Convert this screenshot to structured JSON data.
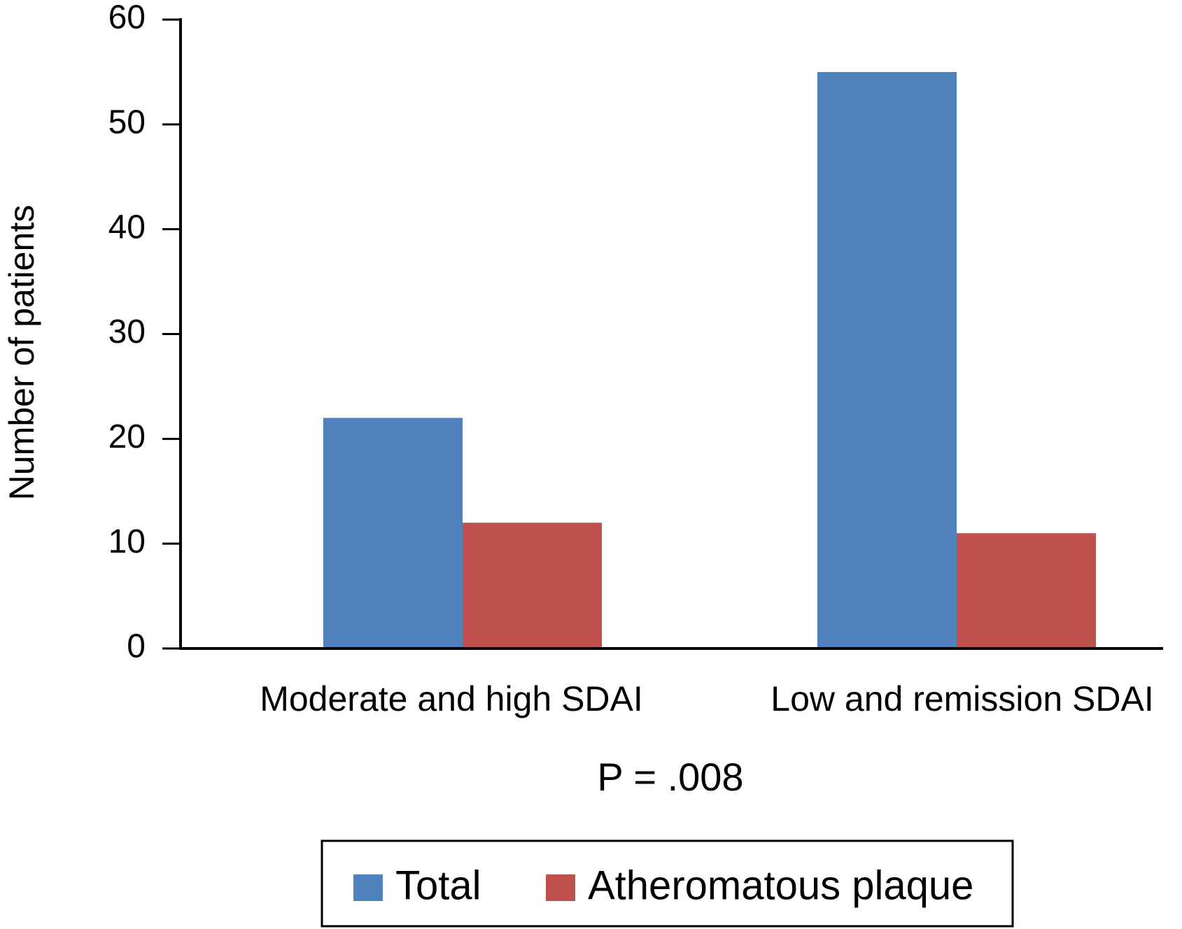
{
  "chart_data": {
    "type": "bar",
    "categories": [
      "Moderate and high SDAI",
      "Low and remission SDAI"
    ],
    "series": [
      {
        "name": "Total",
        "color": "#4f81bd",
        "values": [
          22,
          55
        ]
      },
      {
        "name": "Atheromatous plaque",
        "color": "#c0504d",
        "values": [
          12,
          11
        ]
      }
    ],
    "ylabel": "Number of patients",
    "annotation": "P = .008",
    "ylim": [
      0,
      60
    ],
    "yticks": [
      0,
      10,
      20,
      30,
      40,
      50,
      60
    ],
    "grid": false,
    "legend": "bottom"
  }
}
